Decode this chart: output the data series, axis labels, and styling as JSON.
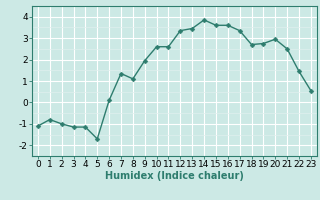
{
  "x": [
    0,
    1,
    2,
    3,
    4,
    5,
    6,
    7,
    8,
    9,
    10,
    11,
    12,
    13,
    14,
    15,
    16,
    17,
    18,
    19,
    20,
    21,
    22,
    23
  ],
  "y": [
    -1.1,
    -0.8,
    -1.0,
    -1.15,
    -1.15,
    -1.7,
    0.1,
    1.35,
    1.1,
    1.95,
    2.6,
    2.6,
    3.35,
    3.45,
    3.85,
    3.6,
    3.6,
    3.35,
    2.7,
    2.75,
    2.95,
    2.5,
    1.45,
    0.55
  ],
  "line_color": "#2e7d6e",
  "marker": "D",
  "markersize": 2.5,
  "linewidth": 1.0,
  "bg_color": "#cce9e5",
  "grid_major_color": "#ffffff",
  "grid_minor_color": "#e0f0ee",
  "xlabel": "Humidex (Indice chaleur)",
  "xlabel_fontsize": 7,
  "xlabel_weight": "bold",
  "xlabel_color": "#2e7d6e",
  "xtick_labels": [
    "0",
    "1",
    "2",
    "3",
    "4",
    "5",
    "6",
    "7",
    "8",
    "9",
    "10",
    "11",
    "12",
    "13",
    "14",
    "15",
    "16",
    "17",
    "18",
    "19",
    "20",
    "21",
    "22",
    "23"
  ],
  "ytick_labels": [
    "-2",
    "-1",
    "0",
    "1",
    "2",
    "3",
    "4"
  ],
  "yticks": [
    -2,
    -1,
    0,
    1,
    2,
    3,
    4
  ],
  "ylim": [
    -2.5,
    4.5
  ],
  "xlim": [
    -0.5,
    23.5
  ],
  "tick_fontsize": 6.5,
  "spine_color": "#2e7d6e"
}
